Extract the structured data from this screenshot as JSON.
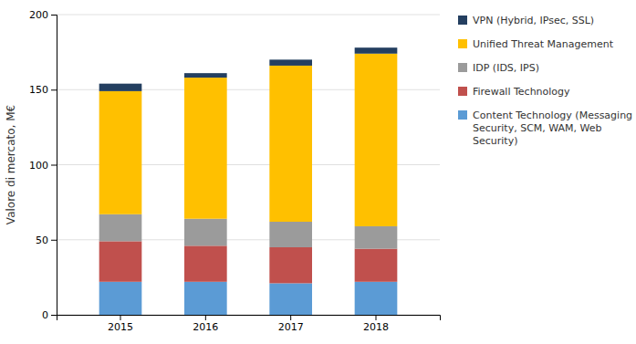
{
  "chart_data": {
    "type": "bar",
    "stacked": true,
    "categories": [
      "2015",
      "2016",
      "2017",
      "2018"
    ],
    "series": [
      {
        "name": "Content Technology (Messaging\nSecurity, SCM, WAM, Web\nSecurity)",
        "color": "#5B9BD5",
        "values": [
          22,
          22,
          21,
          22
        ]
      },
      {
        "name": "Firewall Technology",
        "color": "#C0504D",
        "values": [
          27,
          24,
          24,
          22
        ]
      },
      {
        "name": "IDP (IDS, IPS)",
        "color": "#9B9B9B",
        "values": [
          18,
          18,
          17,
          15
        ]
      },
      {
        "name": "Unified Threat Management",
        "color": "#FFC000",
        "values": [
          82,
          94,
          104,
          115
        ]
      },
      {
        "name": "VPN (Hybrid, IPsec, SSL)",
        "color": "#243F60",
        "values": [
          5,
          3,
          4,
          4
        ]
      }
    ],
    "ylabel": "Valore di mercato, M€",
    "ylim": [
      0,
      200
    ],
    "yticks": [
      0,
      50,
      100,
      150,
      200
    ],
    "grid": true,
    "legend": "right"
  }
}
